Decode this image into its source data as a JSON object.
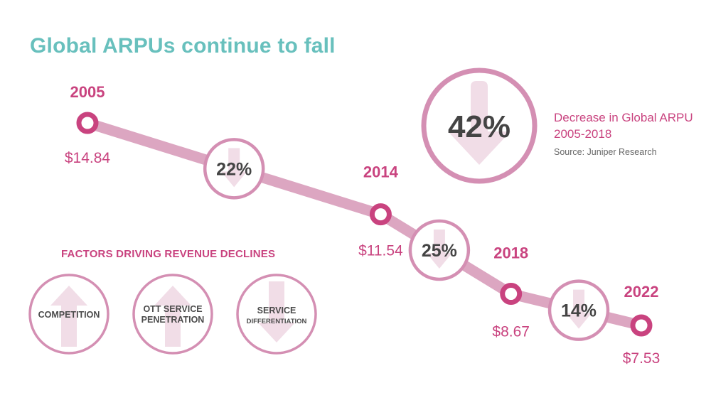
{
  "title": "Global ARPUs continue to fall",
  "chart_data": {
    "type": "line",
    "title": "Global ARPUs continue to fall",
    "x": [
      2005,
      2014,
      2018,
      2022
    ],
    "values": [
      14.84,
      11.54,
      8.67,
      7.53
    ],
    "year_labels": [
      "2005",
      "2014",
      "2018",
      "2022"
    ],
    "value_labels": [
      "$14.84",
      "$11.54",
      "$8.67",
      "$7.53"
    ],
    "segment_changes": [
      "22%",
      "25%",
      "14%"
    ],
    "segment_direction": "down",
    "ylim": [
      7.53,
      14.84
    ]
  },
  "summary": {
    "percent": "42%",
    "label_line1": "Decrease in Global ARPU",
    "label_line2": "2005-2018",
    "source": "Source: Juniper Research"
  },
  "factors": {
    "title": "FACTORS DRIVING REVENUE DECLINES",
    "items": [
      {
        "line1": "COMPETITION",
        "line2": "",
        "direction": "up"
      },
      {
        "line1": "OTT SERVICE",
        "line2": "PENETRATION",
        "direction": "up"
      },
      {
        "line1": "SERVICE",
        "line2": "DIFFERENTIATION",
        "direction": "down"
      }
    ]
  },
  "colors": {
    "accent": "#c9437f",
    "line": "#dca6c1",
    "ring": "#d48fb3",
    "arrow": "#f1dde7",
    "title": "#68c0bd",
    "text_dark": "#4a4a4a"
  }
}
